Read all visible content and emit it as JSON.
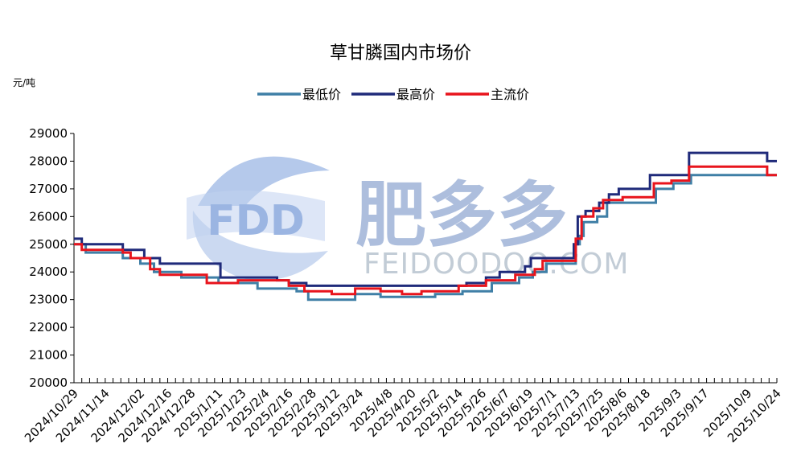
{
  "chart_data": {
    "type": "line",
    "title": "草甘膦国内市场价",
    "unit_label": "元/吨",
    "ylim": [
      20000,
      29000
    ],
    "yticks": [
      "20000",
      "21000",
      "22000",
      "23000",
      "24000",
      "25000",
      "26000",
      "27000",
      "28000",
      "29000"
    ],
    "x_start": "2024/10/29",
    "x_end": "2025/10/24",
    "xticks": [
      "2024/10/29",
      "2024/11/14",
      "2024/12/02",
      "2024/12/16",
      "2024/12/28",
      "2025/1/11",
      "2025/1/23",
      "2025/2/4",
      "2025/2/16",
      "2025/2/28",
      "2025/3/12",
      "2025/3/24",
      "2025/4/8",
      "2025/4/20",
      "2025/5/2",
      "2025/5/14",
      "2025/5/26",
      "2025/6/7",
      "2025/6/19",
      "2025/7/1",
      "2025/7/13",
      "2025/7/25",
      "2025/8/6",
      "2025/8/18",
      "2025/9/3",
      "2025/9/17",
      "2025/10/9",
      "2025/10/24"
    ],
    "grid": false,
    "legend_position": "top",
    "series": [
      {
        "name": "最低价",
        "color": "#3f7fa6",
        "points": [
          [
            "2024/10/29",
            25000
          ],
          [
            "2024/11/4",
            24700
          ],
          [
            "2024/11/23",
            24500
          ],
          [
            "2024/12/2",
            24300
          ],
          [
            "2024/12/9",
            24000
          ],
          [
            "2024/12/23",
            23800
          ],
          [
            "2025/1/11",
            23600
          ],
          [
            "2025/1/31",
            23400
          ],
          [
            "2025/2/20",
            23300
          ],
          [
            "2025/2/26",
            23000
          ],
          [
            "2025/3/22",
            23200
          ],
          [
            "2025/4/4",
            23100
          ],
          [
            "2025/4/20",
            23100
          ],
          [
            "2025/5/2",
            23200
          ],
          [
            "2025/5/16",
            23300
          ],
          [
            "2025/5/31",
            23600
          ],
          [
            "2025/6/14",
            23800
          ],
          [
            "2025/6/21",
            24000
          ],
          [
            "2025/6/28",
            24300
          ],
          [
            "2025/7/10",
            24300
          ],
          [
            "2025/7/13",
            25000
          ],
          [
            "2025/7/15",
            25300
          ],
          [
            "2025/7/17",
            25800
          ],
          [
            "2025/7/24",
            26000
          ],
          [
            "2025/7/29",
            26500
          ],
          [
            "2025/8/18",
            26500
          ],
          [
            "2025/8/23",
            27000
          ],
          [
            "2025/9/1",
            27200
          ],
          [
            "2025/9/10",
            27500
          ],
          [
            "2025/10/24",
            27500
          ]
        ]
      },
      {
        "name": "最高价",
        "color": "#1f2a7a",
        "points": [
          [
            "2024/10/29",
            25200
          ],
          [
            "2024/11/2",
            25000
          ],
          [
            "2024/11/23",
            24800
          ],
          [
            "2024/12/4",
            24500
          ],
          [
            "2024/12/12",
            24300
          ],
          [
            "2025/1/11",
            24300
          ],
          [
            "2025/1/12",
            23800
          ],
          [
            "2025/2/10",
            23700
          ],
          [
            "2025/2/16",
            23600
          ],
          [
            "2025/2/25",
            23500
          ],
          [
            "2025/5/18",
            23600
          ],
          [
            "2025/5/28",
            23800
          ],
          [
            "2025/6/4",
            24000
          ],
          [
            "2025/6/17",
            24200
          ],
          [
            "2025/6/20",
            24500
          ],
          [
            "2025/7/10",
            24500
          ],
          [
            "2025/7/12",
            25000
          ],
          [
            "2025/7/14",
            26000
          ],
          [
            "2025/7/18",
            26200
          ],
          [
            "2025/7/25",
            26500
          ],
          [
            "2025/7/30",
            26800
          ],
          [
            "2025/8/4",
            27000
          ],
          [
            "2025/8/20",
            27500
          ],
          [
            "2025/9/9",
            28300
          ],
          [
            "2025/10/19",
            28000
          ],
          [
            "2025/10/24",
            28000
          ]
        ]
      },
      {
        "name": "主流价",
        "color": "#e8141c",
        "points": [
          [
            "2024/10/29",
            25000
          ],
          [
            "2024/11/2",
            24800
          ],
          [
            "2024/11/23",
            24700
          ],
          [
            "2024/11/27",
            24500
          ],
          [
            "2024/12/7",
            24100
          ],
          [
            "2024/12/12",
            23900
          ],
          [
            "2025/1/5",
            23600
          ],
          [
            "2025/1/20",
            23600
          ],
          [
            "2025/1/21",
            23700
          ],
          [
            "2025/2/16",
            23500
          ],
          [
            "2025/2/24",
            23300
          ],
          [
            "2025/3/10",
            23200
          ],
          [
            "2025/3/22",
            23400
          ],
          [
            "2025/4/4",
            23300
          ],
          [
            "2025/4/15",
            23200
          ],
          [
            "2025/4/25",
            23300
          ],
          [
            "2025/5/14",
            23500
          ],
          [
            "2025/5/28",
            23700
          ],
          [
            "2025/6/12",
            23900
          ],
          [
            "2025/6/22",
            24100
          ],
          [
            "2025/6/26",
            24400
          ],
          [
            "2025/7/10",
            24400
          ],
          [
            "2025/7/13",
            25200
          ],
          [
            "2025/7/16",
            26000
          ],
          [
            "2025/7/22",
            26300
          ],
          [
            "2025/7/27",
            26600
          ],
          [
            "2025/8/6",
            26700
          ],
          [
            "2025/8/22",
            27200
          ],
          [
            "2025/8/31",
            27300
          ],
          [
            "2025/9/9",
            27800
          ],
          [
            "2025/10/19",
            27500
          ],
          [
            "2025/10/24",
            27500
          ]
        ]
      }
    ]
  },
  "watermark": {
    "logo_text": "FDD",
    "brand_cn": "肥多多",
    "brand_en": "FEIDOODOO.COM"
  }
}
